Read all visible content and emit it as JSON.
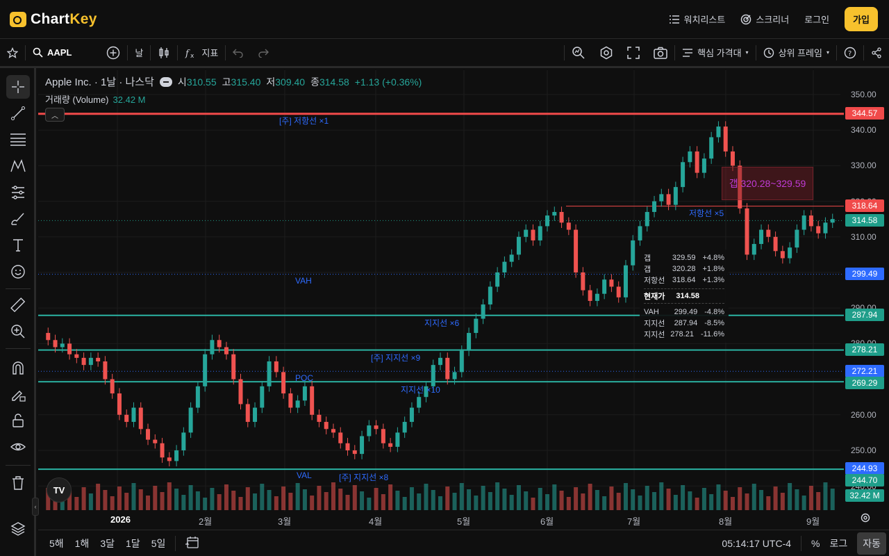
{
  "header": {
    "logo_text_a": "Chart",
    "logo_text_b": "Key",
    "watchlist": "워치리스트",
    "screener": "스크리너",
    "login": "로그인",
    "signup": "가입"
  },
  "toolbar": {
    "symbol": "AAPL",
    "interval": "날",
    "indicators": "지표",
    "key_price_zone": "핵심 가격대",
    "higher_frame": "상위 프레임"
  },
  "legend": {
    "title": "Apple Inc. · 1날 · 나스닥",
    "o_label": "시",
    "o": "310.55",
    "h_label": "고",
    "h": "315.40",
    "l_label": "저",
    "l": "309.40",
    "c_label": "종",
    "c": "314.58",
    "change": "+1.13 (+0.36%)",
    "volume_label": "거래량 (Volume)",
    "volume": "32.42 M"
  },
  "axis": {
    "prices": [
      "350.00",
      "340.00",
      "330.00",
      "320.00",
      "310.00",
      "290.00",
      "280.00",
      "260.00",
      "250.00",
      "240.00"
    ],
    "time": [
      "2026",
      "2월",
      "3월",
      "4월",
      "5월",
      "6월",
      "7월",
      "8월",
      "9월"
    ]
  },
  "tags": {
    "r1": "344.57",
    "r2": "318.64",
    "cur": "314.58",
    "vah": "299.49",
    "s1": "287.94",
    "s2": "278.21",
    "poc": "272.21",
    "s3": "269.29",
    "val": "244.93",
    "s4": "244.70",
    "vol": "32.42 M"
  },
  "labels": {
    "res_main": "[주] 저항선 ×1",
    "res5": "저항선 ×5",
    "vah": "VAH",
    "sup6": "지지선 ×6",
    "sup_main9": "[주] 지지선 ×9",
    "poc": "POC",
    "sup10": "지지선 ×10",
    "val": "VAL",
    "sup_main8": "[주] 지지선 ×8",
    "gap": "갭 320.28~329.59"
  },
  "infobox": {
    "rows_top": [
      {
        "k": "갭",
        "v": "329.59",
        "p": "+4.8%"
      },
      {
        "k": "갭",
        "v": "320.28",
        "p": "+1.8%"
      },
      {
        "k": "저항선",
        "v": "318.64",
        "p": "+1.3%"
      }
    ],
    "current_label": "현재가",
    "current_value": "314.58",
    "rows_bottom": [
      {
        "k": "VAH",
        "v": "299.49",
        "p": "-4.8%"
      },
      {
        "k": "지지선",
        "v": "287.94",
        "p": "-8.5%"
      },
      {
        "k": "지지선",
        "v": "278.21",
        "p": "-11.6%"
      }
    ]
  },
  "bottom": {
    "ranges": [
      "5해",
      "1해",
      "3달",
      "1달",
      "5일"
    ],
    "clock": "05:14:17 UTC-4",
    "percent": "%",
    "log": "로그",
    "auto": "자동"
  },
  "colors": {
    "up": "#26a69a",
    "down": "#ef5350",
    "resistance": "#f04a4a",
    "support": "#2bb3a3",
    "accent": "#f7c12d",
    "blue": "#2e6bff"
  }
}
